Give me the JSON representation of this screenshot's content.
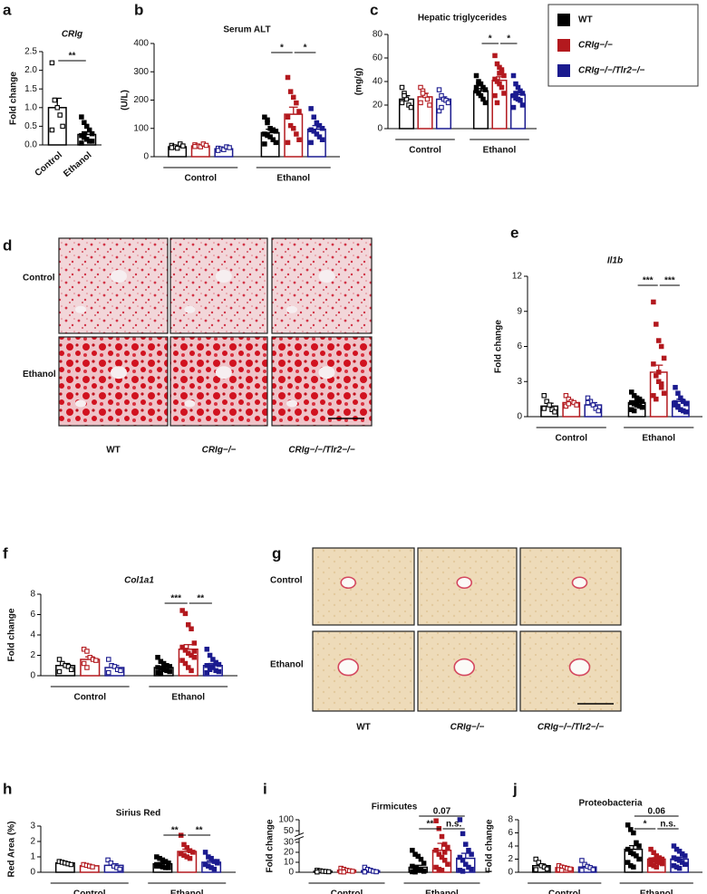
{
  "chart_data": [
    {
      "type": "bar",
      "panel": "a",
      "title": "CRIg",
      "ylabel": "Fold change",
      "categories": [
        "Control",
        "Ethanol"
      ],
      "color": "#000000",
      "values": [
        1.0,
        0.28
      ],
      "errors": [
        0.25,
        0.07
      ],
      "points": [
        [
          2.2,
          1.2,
          1.0,
          0.8,
          0.5,
          0.4
        ],
        [
          0.75,
          0.6,
          0.5,
          0.4,
          0.3,
          0.25,
          0.2,
          0.15,
          0.1,
          0.1,
          0.05,
          0.3
        ]
      ],
      "ylim": [
        0,
        2.5
      ],
      "yticks": [
        {
          "value": 0,
          "label": "0.0"
        },
        {
          "value": 0.5,
          "label": "0.5"
        },
        {
          "value": 1,
          "label": "1.0"
        },
        {
          "value": 1.5,
          "label": "1.5"
        },
        {
          "value": 2,
          "label": "2.0"
        },
        {
          "value": 2.5,
          "label": "2.5"
        }
      ],
      "significance": [
        {
          "from": 0,
          "to": 1,
          "label": "**"
        }
      ]
    },
    {
      "type": "grouped_bar",
      "panel": "b",
      "title": "Serum ALT",
      "ylabel": "(U/L)",
      "groups": [
        "Control",
        "Ethanol"
      ],
      "series": [
        {
          "values": [
            35,
            85
          ],
          "errors": [
            5,
            12
          ],
          "points": [
            [
              40,
              35,
              30,
              45,
              38,
              32
            ],
            [
              140,
              120,
              100,
              95,
              90,
              80,
              75,
              70,
              60,
              50,
              45,
              130
            ]
          ]
        },
        {
          "values": [
            38,
            150
          ],
          "errors": [
            4,
            25
          ],
          "points": [
            [
              42,
              38,
              35,
              45,
              40,
              36
            ],
            [
              280,
              230,
              210,
              190,
              160,
              140,
              110,
              100,
              80,
              60,
              50
            ]
          ]
        },
        {
          "values": [
            28,
            97
          ],
          "errors": [
            4,
            13
          ],
          "points": [
            [
              30,
              28,
              25,
              35,
              32,
              22
            ],
            [
              170,
              140,
              120,
              110,
              100,
              95,
              90,
              80,
              70,
              60,
              50
            ]
          ]
        }
      ],
      "ylim": [
        0,
        400
      ],
      "yticks": [
        0,
        100,
        200,
        300,
        400
      ],
      "significance": [
        {
          "group": 1,
          "from": 0,
          "to": 1,
          "label": "*"
        },
        {
          "group": 1,
          "from": 1,
          "to": 2,
          "label": "*"
        }
      ]
    },
    {
      "type": "grouped_bar",
      "panel": "c",
      "title": "Hepatic triglycerides",
      "ylabel": "(mg/g)",
      "groups": [
        "Control",
        "Ethanol"
      ],
      "series": [
        {
          "values": [
            25,
            32
          ],
          "errors": [
            3,
            2
          ],
          "points": [
            [
              35,
              30,
              25,
              20,
              18,
              22,
              28
            ],
            [
              45,
              40,
              38,
              35,
              33,
              32,
              30,
              28,
              25,
              22,
              35,
              38
            ]
          ]
        },
        {
          "values": [
            27,
            41
          ],
          "errors": [
            3,
            3
          ],
          "points": [
            [
              35,
              32,
              28,
              25,
              20,
              22,
              30
            ],
            [
              62,
              55,
              52,
              48,
              45,
              42,
              40,
              38,
              35,
              30,
              28,
              22,
              47,
              50
            ]
          ]
        },
        {
          "values": [
            25,
            29
          ],
          "errors": [
            2,
            2
          ],
          "points": [
            [
              33,
              28,
              25,
              24,
              22,
              15,
              18
            ],
            [
              45,
              38,
              35,
              32,
              30,
              28,
              26,
              25,
              24,
              20,
              18,
              30
            ]
          ]
        }
      ],
      "ylim": [
        0,
        80
      ],
      "yticks": [
        0,
        20,
        40,
        60,
        80
      ],
      "significance": [
        {
          "group": 1,
          "from": 0,
          "to": 1,
          "label": "*"
        },
        {
          "group": 1,
          "from": 1,
          "to": 2,
          "label": "*"
        }
      ]
    },
    {
      "type": "grouped_bar",
      "panel": "e",
      "title": "Il1b",
      "ylabel": "Fold change",
      "groups": [
        "Control",
        "Ethanol"
      ],
      "series": [
        {
          "values": [
            0.9,
            1.2
          ],
          "errors": [
            0.25,
            0.15
          ],
          "points": [
            [
              1.8,
              1.3,
              1.0,
              0.6,
              0.4,
              0.7
            ],
            [
              2.1,
              1.8,
              1.6,
              1.4,
              1.3,
              1.2,
              1.1,
              1.0,
              0.9,
              0.8,
              0.6,
              0.5,
              1.0,
              1.5
            ]
          ]
        },
        {
          "values": [
            1.2,
            3.8
          ],
          "errors": [
            0.15,
            0.6
          ],
          "points": [
            [
              1.8,
              1.5,
              1.3,
              1.2,
              1.0,
              0.9,
              1.1
            ],
            [
              9.8,
              7.9,
              6.5,
              6.0,
              5.0,
              4.5,
              3.5,
              3.0,
              2.5,
              2.0,
              1.8,
              1.5,
              3.8,
              2.8
            ]
          ]
        },
        {
          "values": [
            1.0,
            1.3
          ],
          "errors": [
            0.2,
            0.2
          ],
          "points": [
            [
              1.6,
              1.3,
              1.0,
              0.7,
              0.5,
              1.2
            ],
            [
              2.5,
              2.0,
              1.6,
              1.3,
              1.1,
              1.0,
              0.8,
              0.6,
              0.5,
              0.4,
              1.2,
              0.9
            ]
          ]
        }
      ],
      "ylim": [
        0,
        12
      ],
      "yticks": [
        0,
        3,
        6,
        9,
        12
      ],
      "significance": [
        {
          "group": 1,
          "from": 0,
          "to": 1,
          "label": "***"
        },
        {
          "group": 1,
          "from": 1,
          "to": 2,
          "label": "***"
        }
      ]
    },
    {
      "type": "grouped_bar",
      "panel": "f",
      "title": "Col1a1",
      "ylabel": "Fold change",
      "groups": [
        "Control",
        "Ethanol"
      ],
      "series": [
        {
          "values": [
            1.0,
            0.8
          ],
          "errors": [
            0.2,
            0.12
          ],
          "points": [
            [
              1.6,
              1.2,
              1.0,
              0.9,
              0.6,
              0.4
            ],
            [
              1.8,
              1.4,
              1.2,
              1.0,
              0.9,
              0.8,
              0.7,
              0.6,
              0.5,
              0.4,
              0.3,
              0.2,
              0.8
            ]
          ]
        },
        {
          "values": [
            1.6,
            2.6
          ],
          "errors": [
            0.25,
            0.45
          ],
          "points": [
            [
              2.6,
              2.4,
              1.8,
              1.6,
              1.5,
              1.2,
              0.8
            ],
            [
              6.4,
              6.1,
              5.0,
              4.6,
              3.2,
              2.8,
              2.5,
              2.2,
              2.0,
              1.8,
              1.5,
              1.2,
              0.8,
              0.5,
              2.4
            ]
          ]
        },
        {
          "values": [
            0.8,
            1.0
          ],
          "errors": [
            0.2,
            0.2
          ],
          "points": [
            [
              1.6,
              1.0,
              0.9,
              0.6,
              0.5,
              0.3
            ],
            [
              2.6,
              2.0,
              1.6,
              1.3,
              1.1,
              1.0,
              0.9,
              0.8,
              0.5,
              0.4,
              0.3,
              0.6
            ]
          ]
        }
      ],
      "ylim": [
        0,
        8
      ],
      "yticks": [
        0,
        2,
        4,
        6,
        8
      ],
      "significance": [
        {
          "group": 1,
          "from": 0,
          "to": 1,
          "label": "***"
        },
        {
          "group": 1,
          "from": 1,
          "to": 2,
          "label": "**"
        }
      ]
    },
    {
      "type": "grouped_bar",
      "panel": "h",
      "title": "Sirius Red",
      "ylabel": "Red Area (%)",
      "groups": [
        "Control",
        "Ethanol"
      ],
      "series": [
        {
          "values": [
            0.6,
            0.55
          ],
          "errors": [
            0.05,
            0.08
          ],
          "points": [
            [
              0.7,
              0.65,
              0.6,
              0.55,
              0.5
            ],
            [
              1.0,
              0.9,
              0.8,
              0.7,
              0.6,
              0.5,
              0.4,
              0.35,
              0.3,
              0.3,
              0.4
            ]
          ]
        },
        {
          "values": [
            0.42,
            1.35
          ],
          "errors": [
            0.04,
            0.15
          ],
          "points": [
            [
              0.5,
              0.45,
              0.4,
              0.35
            ],
            [
              2.4,
              1.8,
              1.6,
              1.4,
              1.3,
              1.2,
              1.1,
              1.0,
              0.9
            ]
          ]
        },
        {
          "values": [
            0.45,
            0.65
          ],
          "errors": [
            0.1,
            0.1
          ],
          "points": [
            [
              0.8,
              0.6,
              0.4,
              0.3,
              0.2
            ],
            [
              1.3,
              1.0,
              0.9,
              0.7,
              0.6,
              0.5,
              0.4,
              0.3,
              0.2,
              0.7
            ]
          ]
        }
      ],
      "ylim": [
        0,
        3
      ],
      "yticks": [
        0,
        1,
        2,
        3
      ],
      "significance": [
        {
          "group": 1,
          "from": 0,
          "to": 1,
          "label": "**"
        },
        {
          "group": 1,
          "from": 1,
          "to": 2,
          "label": "**"
        }
      ]
    },
    {
      "type": "grouped_bar",
      "panel": "i",
      "title": "Firmicutes",
      "ylabel": "Fold change",
      "groups": [
        "Control",
        "Ethanol"
      ],
      "series": [
        {
          "values": [
            1,
            5
          ],
          "errors": [
            0.3,
            2
          ],
          "points": [
            [
              2,
              1.5,
              1,
              0.8,
              0.5,
              0.3
            ],
            [
              22,
              18,
              16,
              13,
              9,
              6,
              4,
              3,
              2,
              1,
              0.5,
              0.3
            ]
          ]
        },
        {
          "values": [
            2,
            22
          ],
          "errors": [
            0.5,
            7
          ],
          "points": [
            [
              4,
              3,
              2,
              1.5,
              1,
              0.5,
              0.3
            ],
            [
              95,
              60,
              40,
              28,
              25,
              22,
              18,
              15,
              12,
              8,
              5,
              3,
              2,
              20
            ]
          ]
        },
        {
          "values": [
            1.5,
            14
          ],
          "errors": [
            0.7,
            5
          ],
          "points": [
            [
              5,
              3,
              2,
              1,
              0.5,
              0.3
            ],
            [
              100,
              45,
              28,
              22,
              18,
              15,
              12,
              8,
              5,
              3,
              2,
              1
            ]
          ]
        }
      ],
      "ylim": [
        0,
        100
      ],
      "ybreak": [
        30,
        50
      ],
      "yticks": [
        0,
        10,
        20,
        30,
        50,
        100
      ],
      "significance": [
        {
          "group": 1,
          "from": 0,
          "to": 1,
          "label": "**"
        },
        {
          "group": 1,
          "from": 1,
          "to": 2,
          "label": "n.s."
        },
        {
          "group": 1,
          "from": 0,
          "to": 2,
          "label": "0.07"
        }
      ]
    },
    {
      "type": "grouped_bar",
      "panel": "j",
      "title": "Proteobacteria",
      "ylabel": "Fold change",
      "groups": [
        "Control",
        "Ethanol"
      ],
      "series": [
        {
          "values": [
            1.0,
            3.5
          ],
          "errors": [
            0.25,
            0.55
          ],
          "points": [
            [
              2,
              1.5,
              1,
              0.8,
              0.5,
              0.4
            ],
            [
              7.2,
              6.5,
              6,
              4.5,
              4,
              3.5,
              3,
              2.8,
              2.5,
              2,
              1.5,
              1,
              0.8
            ]
          ]
        },
        {
          "values": [
            0.7,
            2.0
          ],
          "errors": [
            0.1,
            0.22
          ],
          "points": [
            [
              1,
              0.8,
              0.7,
              0.6,
              0.5,
              0.4,
              0.3
            ],
            [
              3.5,
              3,
              2.5,
              2.2,
              2,
              1.9,
              1.8,
              1.6,
              1.5,
              1.3,
              1.2,
              1,
              0.8
            ]
          ]
        },
        {
          "values": [
            0.8,
            2.0
          ],
          "errors": [
            0.2,
            0.3
          ],
          "points": [
            [
              1.8,
              1.2,
              0.9,
              0.7,
              0.4,
              0.3
            ],
            [
              4,
              3.5,
              3.2,
              2.8,
              2.5,
              2.2,
              2,
              1.8,
              1.5,
              1.2,
              1,
              0.8,
              0.6
            ]
          ]
        }
      ],
      "ylim": [
        0,
        8
      ],
      "yticks": [
        0,
        2,
        4,
        6,
        8
      ],
      "significance": [
        {
          "group": 1,
          "from": 0,
          "to": 1,
          "label": "*"
        },
        {
          "group": 1,
          "from": 1,
          "to": 2,
          "label": "n.s."
        },
        {
          "group": 1,
          "from": 0,
          "to": 2,
          "label": "0.06"
        }
      ]
    }
  ],
  "legend": [
    {
      "name": "WT",
      "color": "#000000"
    },
    {
      "name": "CRIg−/−",
      "color": "#b3191e"
    },
    {
      "name": "CRIg−/−/Tlr2−/−",
      "color": "#1b1b8f"
    }
  ],
  "figures": [
    {
      "panel": "d",
      "rows": [
        "Control",
        "Ethanol"
      ],
      "columns": [
        "WT",
        "CRIg−/−",
        "CRIg−/−/Tlr2−/−"
      ]
    },
    {
      "panel": "g",
      "rows": [
        "Control",
        "Ethanol"
      ],
      "columns": [
        "WT",
        "CRIg−/−",
        "CRIg−/−/Tlr2−/−"
      ]
    }
  ]
}
